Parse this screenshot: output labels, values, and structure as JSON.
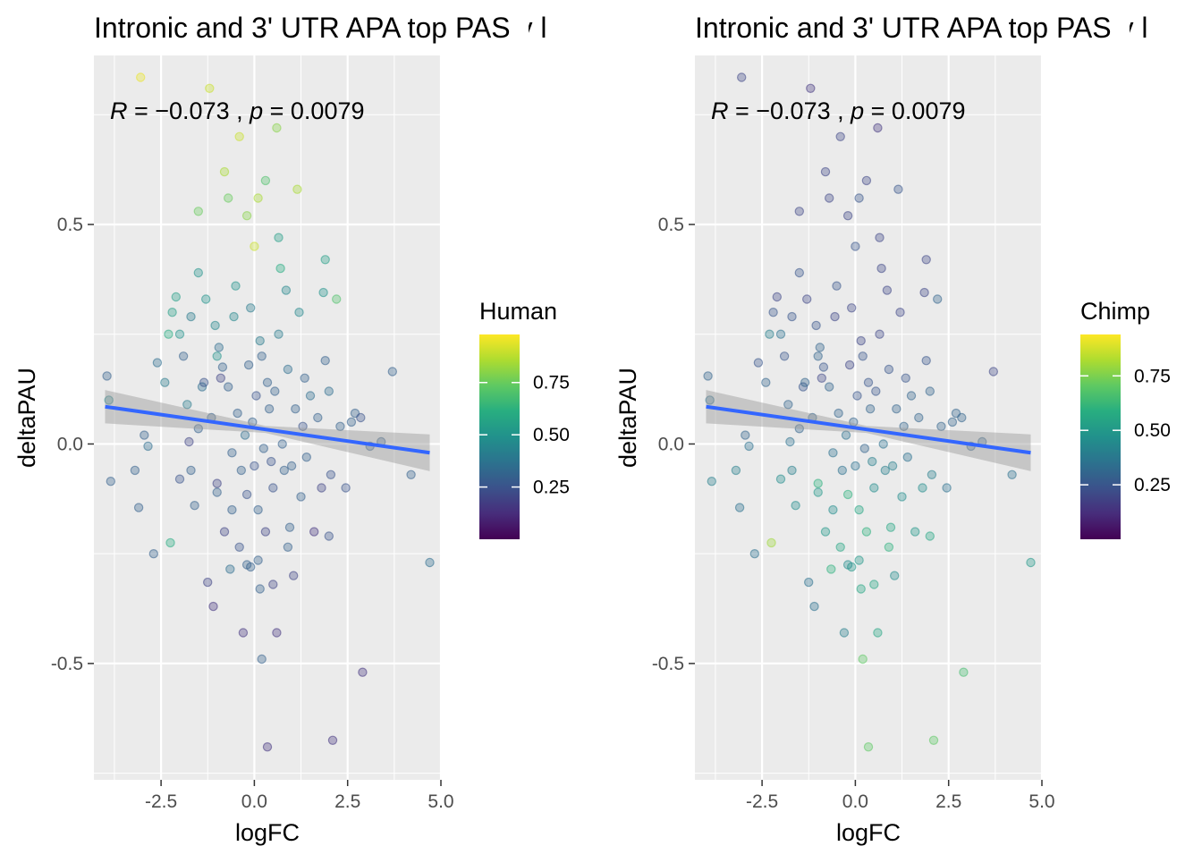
{
  "chart_data": [
    {
      "type": "scatter",
      "title": "Intronic and 3' UTR APA top PAS v l",
      "xlabel": "logFC",
      "ylabel": "deltaPAU",
      "xlim": [
        -4.3,
        5.0
      ],
      "ylim": [
        -0.765,
        0.885
      ],
      "x_ticks": [
        -2.5,
        0.0,
        2.5,
        5.0
      ],
      "x_tick_labels": [
        "-2.5",
        "0.0",
        "2.5",
        "5.0"
      ],
      "y_ticks": [
        -0.5,
        0.0,
        0.5
      ],
      "y_tick_labels": [
        "-0.5",
        "0.0",
        "0.5"
      ],
      "annotation": {
        "R_label": "R",
        "R_value": "−0.073",
        "p_label": "p",
        "p_value": "0.0079"
      },
      "fit_line": {
        "x": [
          -4.0,
          4.7
        ],
        "y": [
          0.085,
          -0.02
        ],
        "color": "#3366FF"
      },
      "legend": {
        "title": "Human",
        "placement": "right",
        "ticks": [
          0.25,
          0.5,
          0.75
        ],
        "tick_labels": [
          "0.25",
          "0.50",
          "0.75"
        ],
        "range": [
          0.0,
          0.98
        ]
      },
      "grid": true,
      "points": [
        [
          -3.95,
          0.155,
          0.3
        ],
        [
          -3.9,
          0.1,
          0.45
        ],
        [
          -3.85,
          -0.085,
          0.3
        ],
        [
          -3.2,
          -0.06,
          0.3
        ],
        [
          -3.1,
          -0.145,
          0.3
        ],
        [
          -2.95,
          0.02,
          0.3
        ],
        [
          -2.85,
          -0.005,
          0.35
        ],
        [
          -2.7,
          -0.25,
          0.3
        ],
        [
          -2.6,
          0.185,
          0.35
        ],
        [
          -2.4,
          0.14,
          0.4
        ],
        [
          -2.3,
          0.25,
          0.6
        ],
        [
          -2.25,
          -0.225,
          0.6
        ],
        [
          -2.2,
          0.3,
          0.55
        ],
        [
          -2.1,
          0.335,
          0.55
        ],
        [
          -2.0,
          0.25,
          0.5
        ],
        [
          -1.9,
          0.2,
          0.3
        ],
        [
          -1.8,
          0.09,
          0.4
        ],
        [
          -1.75,
          0.005,
          0.2
        ],
        [
          -1.7,
          -0.06,
          0.3
        ],
        [
          -1.6,
          -0.14,
          0.3
        ],
        [
          -1.5,
          0.035,
          0.3
        ],
        [
          -1.4,
          0.13,
          0.35
        ],
        [
          -1.3,
          0.33,
          0.5
        ],
        [
          -1.25,
          -0.315,
          0.2
        ],
        [
          -1.15,
          0.06,
          0.3
        ],
        [
          -1.1,
          -0.37,
          0.15
        ],
        [
          -1.05,
          0.27,
          0.45
        ],
        [
          -1.0,
          -0.09,
          0.2
        ],
        [
          -0.95,
          0.22,
          0.35
        ],
        [
          -0.85,
          0.175,
          0.3
        ],
        [
          -0.8,
          -0.2,
          0.2
        ],
        [
          -0.7,
          0.13,
          0.3
        ],
        [
          -0.6,
          -0.02,
          0.3
        ],
        [
          -0.55,
          0.29,
          0.45
        ],
        [
          -0.45,
          0.07,
          0.3
        ],
        [
          -0.4,
          -0.235,
          0.25
        ],
        [
          -0.3,
          -0.43,
          0.15
        ],
        [
          -0.25,
          0.02,
          0.35
        ],
        [
          -0.2,
          -0.115,
          0.25
        ],
        [
          -0.15,
          0.18,
          0.3
        ],
        [
          -0.1,
          -0.28,
          0.3
        ],
        [
          -0.05,
          0.05,
          0.3
        ],
        [
          0.0,
          -0.05,
          0.25
        ],
        [
          0.05,
          0.11,
          0.25
        ],
        [
          0.1,
          -0.15,
          0.3
        ],
        [
          0.15,
          0.235,
          0.4
        ],
        [
          0.2,
          -0.49,
          0.3
        ],
        [
          0.25,
          -0.01,
          0.3
        ],
        [
          0.3,
          -0.2,
          0.2
        ],
        [
          0.35,
          0.14,
          0.3
        ],
        [
          0.4,
          0.08,
          0.3
        ],
        [
          0.5,
          -0.1,
          0.25
        ],
        [
          0.55,
          0.12,
          0.3
        ],
        [
          0.6,
          -0.43,
          0.15
        ],
        [
          0.65,
          0.25,
          0.4
        ],
        [
          0.75,
          0.0,
          0.3
        ],
        [
          0.8,
          -0.06,
          0.3
        ],
        [
          0.9,
          0.17,
          0.35
        ],
        [
          1.0,
          -0.05,
          0.3
        ],
        [
          1.1,
          0.08,
          0.3
        ],
        [
          1.2,
          0.3,
          0.45
        ],
        [
          1.25,
          -0.12,
          0.3
        ],
        [
          1.3,
          0.04,
          0.25
        ],
        [
          1.4,
          -0.03,
          0.3
        ],
        [
          1.5,
          0.11,
          0.35
        ],
        [
          1.6,
          -0.2,
          0.15
        ],
        [
          1.7,
          0.06,
          0.3
        ],
        [
          1.8,
          -0.1,
          0.2
        ],
        [
          1.9,
          0.19,
          0.3
        ],
        [
          2.0,
          0.12,
          0.35
        ],
        [
          2.05,
          -0.07,
          0.25
        ],
        [
          2.1,
          -0.675,
          0.15
        ],
        [
          2.2,
          0.33,
          0.7
        ],
        [
          2.3,
          0.04,
          0.3
        ],
        [
          2.45,
          -0.1,
          0.25
        ],
        [
          2.6,
          0.05,
          0.3
        ],
        [
          2.7,
          0.07,
          0.3
        ],
        [
          2.85,
          0.06,
          0.25
        ],
        [
          2.9,
          -0.52,
          0.15
        ],
        [
          3.1,
          -0.005,
          0.3
        ],
        [
          3.4,
          0.005,
          0.3
        ],
        [
          3.7,
          0.165,
          0.3
        ],
        [
          4.2,
          -0.07,
          0.3
        ],
        [
          4.7,
          -0.27,
          0.35
        ],
        [
          -1.5,
          0.53,
          0.75
        ],
        [
          -1.2,
          0.81,
          0.9
        ],
        [
          -1.0,
          0.2,
          0.5
        ],
        [
          -0.8,
          0.62,
          0.85
        ],
        [
          -0.4,
          0.7,
          0.9
        ],
        [
          -0.2,
          0.52,
          0.8
        ],
        [
          0.1,
          0.56,
          0.85
        ],
        [
          0.3,
          0.6,
          0.7
        ],
        [
          0.6,
          0.72,
          0.8
        ],
        [
          0.0,
          0.45,
          0.9
        ],
        [
          -0.5,
          0.36,
          0.5
        ],
        [
          0.7,
          0.4,
          0.6
        ],
        [
          1.9,
          0.42,
          0.55
        ],
        [
          -3.05,
          0.835,
          0.95
        ],
        [
          -1.5,
          0.39,
          0.5
        ],
        [
          0.35,
          -0.69,
          0.15
        ],
        [
          1.15,
          0.58,
          0.85
        ],
        [
          -0.9,
          0.15,
          0.2
        ],
        [
          -0.6,
          -0.15,
          0.3
        ],
        [
          0.45,
          -0.04,
          0.25
        ],
        [
          0.85,
          0.35,
          0.45
        ],
        [
          -0.35,
          -0.06,
          0.3
        ],
        [
          0.2,
          0.2,
          0.3
        ],
        [
          -0.1,
          0.31,
          0.4
        ],
        [
          0.15,
          -0.33,
          0.3
        ],
        [
          -1.35,
          0.14,
          0.25
        ],
        [
          1.35,
          0.15,
          0.3
        ],
        [
          -2.0,
          -0.08,
          0.25
        ],
        [
          2.0,
          -0.21,
          0.25
        ],
        [
          0.9,
          -0.235,
          0.3
        ],
        [
          1.05,
          -0.3,
          0.2
        ],
        [
          -0.65,
          -0.285,
          0.35
        ],
        [
          -1.0,
          -0.11,
          0.3
        ],
        [
          0.65,
          0.47,
          0.55
        ],
        [
          -0.7,
          0.56,
          0.75
        ],
        [
          1.85,
          0.345,
          0.5
        ],
        [
          -1.7,
          0.29,
          0.4
        ],
        [
          0.95,
          -0.19,
          0.3
        ],
        [
          -0.2,
          -0.275,
          0.3
        ],
        [
          0.1,
          -0.265,
          0.3
        ],
        [
          0.5,
          -0.32,
          0.2
        ]
      ]
    },
    {
      "type": "scatter",
      "title": "Intronic and 3' UTR APA top PAS v l",
      "xlabel": "logFC",
      "ylabel": "deltaPAU",
      "xlim": [
        -4.3,
        5.0
      ],
      "ylim": [
        -0.765,
        0.885
      ],
      "x_ticks": [
        -2.5,
        0.0,
        2.5,
        5.0
      ],
      "x_tick_labels": [
        "-2.5",
        "0.0",
        "2.5",
        "5.0"
      ],
      "y_ticks": [
        -0.5,
        0.0,
        0.5
      ],
      "y_tick_labels": [
        "-0.5",
        "0.0",
        "0.5"
      ],
      "annotation": {
        "R_label": "R",
        "R_value": "−0.073",
        "p_label": "p",
        "p_value": "0.0079"
      },
      "fit_line": {
        "x": [
          -4.0,
          4.7
        ],
        "y": [
          0.085,
          -0.02
        ],
        "color": "#3366FF"
      },
      "legend": {
        "title": "Chimp",
        "placement": "right",
        "ticks": [
          0.25,
          0.5,
          0.75
        ],
        "tick_labels": [
          "0.25",
          "0.50",
          "0.75"
        ],
        "range": [
          0.0,
          0.94
        ]
      },
      "grid": true,
      "points": [
        [
          -3.95,
          0.155,
          0.3
        ],
        [
          -3.9,
          0.1,
          0.35
        ],
        [
          -3.85,
          -0.085,
          0.4
        ],
        [
          -3.2,
          -0.06,
          0.4
        ],
        [
          -3.1,
          -0.145,
          0.35
        ],
        [
          -2.95,
          0.02,
          0.3
        ],
        [
          -2.85,
          -0.005,
          0.35
        ],
        [
          -2.7,
          -0.25,
          0.35
        ],
        [
          -2.6,
          0.185,
          0.25
        ],
        [
          -2.4,
          0.14,
          0.3
        ],
        [
          -2.3,
          0.25,
          0.4
        ],
        [
          -2.25,
          -0.225,
          0.8
        ],
        [
          -2.2,
          0.3,
          0.25
        ],
        [
          -2.1,
          0.335,
          0.2
        ],
        [
          -2.0,
          0.25,
          0.35
        ],
        [
          -1.9,
          0.2,
          0.25
        ],
        [
          -1.8,
          0.09,
          0.3
        ],
        [
          -1.75,
          0.005,
          0.35
        ],
        [
          -1.7,
          -0.06,
          0.4
        ],
        [
          -1.6,
          -0.14,
          0.45
        ],
        [
          -1.5,
          0.035,
          0.3
        ],
        [
          -1.4,
          0.13,
          0.25
        ],
        [
          -1.3,
          0.33,
          0.2
        ],
        [
          -1.25,
          -0.315,
          0.35
        ],
        [
          -1.15,
          0.06,
          0.3
        ],
        [
          -1.1,
          -0.37,
          0.35
        ],
        [
          -1.05,
          0.27,
          0.25
        ],
        [
          -1.0,
          -0.09,
          0.6
        ],
        [
          -0.95,
          0.22,
          0.3
        ],
        [
          -0.85,
          0.175,
          0.25
        ],
        [
          -0.8,
          -0.2,
          0.5
        ],
        [
          -0.7,
          0.13,
          0.3
        ],
        [
          -0.6,
          -0.02,
          0.35
        ],
        [
          -0.55,
          0.29,
          0.2
        ],
        [
          -0.45,
          0.07,
          0.3
        ],
        [
          -0.4,
          -0.235,
          0.55
        ],
        [
          -0.3,
          -0.43,
          0.4
        ],
        [
          -0.25,
          0.02,
          0.35
        ],
        [
          -0.2,
          -0.115,
          0.6
        ],
        [
          -0.15,
          0.18,
          0.2
        ],
        [
          -0.1,
          -0.28,
          0.5
        ],
        [
          -0.05,
          0.05,
          0.3
        ],
        [
          0.0,
          -0.05,
          0.35
        ],
        [
          0.05,
          0.11,
          0.25
        ],
        [
          0.1,
          -0.15,
          0.55
        ],
        [
          0.15,
          0.235,
          0.2
        ],
        [
          0.2,
          -0.49,
          0.7
        ],
        [
          0.25,
          -0.01,
          0.3
        ],
        [
          0.3,
          -0.2,
          0.6
        ],
        [
          0.35,
          0.14,
          0.25
        ],
        [
          0.4,
          0.08,
          0.3
        ],
        [
          0.5,
          -0.1,
          0.45
        ],
        [
          0.55,
          0.12,
          0.25
        ],
        [
          0.6,
          -0.43,
          0.55
        ],
        [
          0.65,
          0.25,
          0.2
        ],
        [
          0.75,
          0.0,
          0.35
        ],
        [
          0.8,
          -0.06,
          0.4
        ],
        [
          0.9,
          0.17,
          0.25
        ],
        [
          1.0,
          -0.05,
          0.4
        ],
        [
          1.1,
          0.08,
          0.3
        ],
        [
          1.2,
          0.3,
          0.2
        ],
        [
          1.25,
          -0.12,
          0.45
        ],
        [
          1.3,
          0.04,
          0.3
        ],
        [
          1.4,
          -0.03,
          0.35
        ],
        [
          1.5,
          0.11,
          0.3
        ],
        [
          1.6,
          -0.2,
          0.5
        ],
        [
          1.7,
          0.06,
          0.3
        ],
        [
          1.8,
          -0.1,
          0.45
        ],
        [
          1.9,
          0.19,
          0.25
        ],
        [
          2.0,
          0.12,
          0.3
        ],
        [
          2.05,
          -0.07,
          0.4
        ],
        [
          2.1,
          -0.675,
          0.7
        ],
        [
          2.2,
          0.33,
          0.3
        ],
        [
          2.3,
          0.04,
          0.3
        ],
        [
          2.45,
          -0.1,
          0.35
        ],
        [
          2.6,
          0.05,
          0.3
        ],
        [
          2.7,
          0.07,
          0.3
        ],
        [
          2.85,
          0.06,
          0.3
        ],
        [
          2.9,
          -0.52,
          0.65
        ],
        [
          3.1,
          -0.005,
          0.3
        ],
        [
          3.4,
          0.005,
          0.3
        ],
        [
          3.7,
          0.165,
          0.2
        ],
        [
          4.2,
          -0.07,
          0.35
        ],
        [
          4.7,
          -0.27,
          0.5
        ],
        [
          -1.5,
          0.53,
          0.2
        ],
        [
          -1.2,
          0.81,
          0.15
        ],
        [
          -1.0,
          0.2,
          0.3
        ],
        [
          -0.8,
          0.62,
          0.2
        ],
        [
          -0.4,
          0.7,
          0.2
        ],
        [
          -0.2,
          0.52,
          0.2
        ],
        [
          0.1,
          0.56,
          0.25
        ],
        [
          0.3,
          0.6,
          0.2
        ],
        [
          0.6,
          0.72,
          0.15
        ],
        [
          0.0,
          0.45,
          0.25
        ],
        [
          -0.5,
          0.36,
          0.25
        ],
        [
          0.7,
          0.4,
          0.2
        ],
        [
          1.9,
          0.42,
          0.2
        ],
        [
          -3.05,
          0.835,
          0.2
        ],
        [
          -1.5,
          0.39,
          0.25
        ],
        [
          0.35,
          -0.69,
          0.7
        ],
        [
          1.15,
          0.58,
          0.25
        ],
        [
          -0.9,
          0.15,
          0.2
        ],
        [
          -0.6,
          -0.15,
          0.45
        ],
        [
          0.45,
          -0.04,
          0.4
        ],
        [
          0.85,
          0.35,
          0.2
        ],
        [
          -0.35,
          -0.06,
          0.35
        ],
        [
          0.2,
          0.2,
          0.25
        ],
        [
          -0.1,
          0.31,
          0.2
        ],
        [
          0.15,
          -0.33,
          0.55
        ],
        [
          -1.35,
          0.14,
          0.3
        ],
        [
          1.35,
          0.15,
          0.25
        ],
        [
          -2.0,
          -0.08,
          0.45
        ],
        [
          2.0,
          -0.21,
          0.55
        ],
        [
          0.9,
          -0.235,
          0.6
        ],
        [
          1.05,
          -0.3,
          0.45
        ],
        [
          -0.65,
          -0.285,
          0.6
        ],
        [
          -1.0,
          -0.11,
          0.5
        ],
        [
          0.65,
          0.47,
          0.2
        ],
        [
          -0.7,
          0.56,
          0.2
        ],
        [
          1.85,
          0.345,
          0.2
        ],
        [
          -1.7,
          0.29,
          0.25
        ],
        [
          0.95,
          -0.19,
          0.55
        ],
        [
          -0.2,
          -0.275,
          0.45
        ],
        [
          0.1,
          -0.265,
          0.5
        ],
        [
          0.5,
          -0.32,
          0.55
        ]
      ]
    }
  ]
}
